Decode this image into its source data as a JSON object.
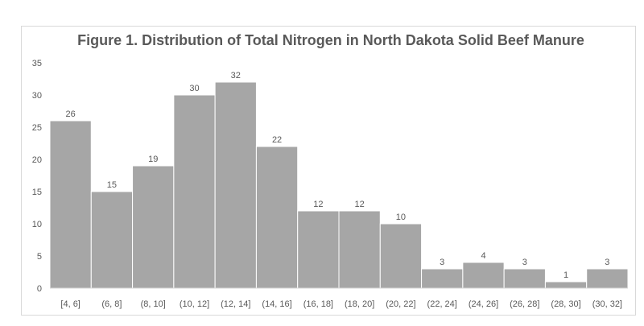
{
  "chart_data": {
    "type": "bar",
    "title": "Figure 1. Distribution of Total Nitrogen in North Dakota Solid Beef Manure",
    "xlabel": "",
    "ylabel": "",
    "categories": [
      "[4, 6]",
      "(6, 8]",
      "(8, 10]",
      "(10, 12]",
      "(12, 14]",
      "(14, 16]",
      "(16, 18]",
      "(18, 20]",
      "(20, 22]",
      "(22, 24]",
      "(24, 26]",
      "(26, 28]",
      "(28, 30]",
      "(30, 32]"
    ],
    "values": [
      26,
      15,
      19,
      30,
      32,
      22,
      12,
      12,
      10,
      3,
      4,
      3,
      1,
      3
    ],
    "ylim": [
      0,
      35
    ],
    "yticks": [
      0,
      5,
      10,
      15,
      20,
      25,
      30,
      35
    ],
    "grid": false,
    "legend": "none",
    "bar_color": "#a6a6a6",
    "bar_edge_color": "#ffffff"
  }
}
